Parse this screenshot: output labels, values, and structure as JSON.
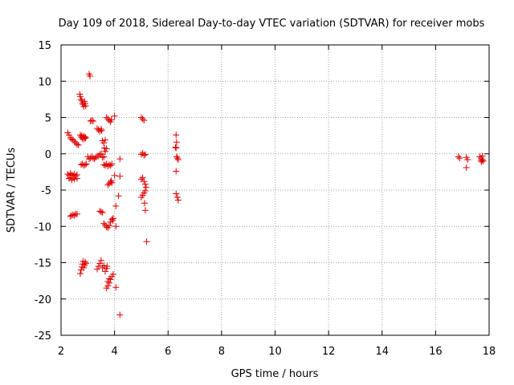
{
  "chart_data": {
    "type": "scatter",
    "title": "Day 109 of 2018, Sidereal Day-to-day VTEC variation (SDTVAR) for receiver mobs",
    "xlabel": "GPS time / hours",
    "ylabel": "SDTVAR / TECUs",
    "xlim": [
      2,
      18
    ],
    "ylim": [
      -25,
      15
    ],
    "xticks": [
      2,
      4,
      6,
      8,
      10,
      12,
      14,
      16,
      18
    ],
    "yticks": [
      -25,
      -20,
      -15,
      -10,
      -5,
      0,
      5,
      10,
      15
    ],
    "grid": true,
    "marker": "+",
    "color": "#e00000",
    "series": [
      {
        "name": "SDTVAR",
        "points": [
          [
            2.25,
            2.9
          ],
          [
            2.3,
            2.6
          ],
          [
            2.35,
            2.2
          ],
          [
            2.4,
            2.0
          ],
          [
            2.45,
            1.9
          ],
          [
            2.5,
            1.7
          ],
          [
            2.55,
            1.5
          ],
          [
            2.6,
            1.3
          ],
          [
            2.65,
            1.2
          ],
          [
            2.25,
            -2.8
          ],
          [
            2.3,
            -3.0
          ],
          [
            2.3,
            -3.4
          ],
          [
            2.35,
            -2.7
          ],
          [
            2.35,
            -3.3
          ],
          [
            2.4,
            -2.9
          ],
          [
            2.4,
            -3.6
          ],
          [
            2.45,
            -3.0
          ],
          [
            2.45,
            -3.3
          ],
          [
            2.5,
            -2.8
          ],
          [
            2.5,
            -3.5
          ],
          [
            2.55,
            -3.1
          ],
          [
            2.6,
            -2.9
          ],
          [
            2.6,
            -3.4
          ],
          [
            2.35,
            -8.6
          ],
          [
            2.4,
            -8.5
          ],
          [
            2.45,
            -8.4
          ],
          [
            2.5,
            -8.5
          ],
          [
            2.55,
            -8.3
          ],
          [
            2.6,
            -8.3
          ],
          [
            2.7,
            8.2
          ],
          [
            2.72,
            7.9
          ],
          [
            2.75,
            7.5
          ],
          [
            2.78,
            7.3
          ],
          [
            2.8,
            7.0
          ],
          [
            2.82,
            6.8
          ],
          [
            2.85,
            6.5
          ],
          [
            2.88,
            7.2
          ],
          [
            2.9,
            6.9
          ],
          [
            2.92,
            6.6
          ],
          [
            2.72,
            2.6
          ],
          [
            2.75,
            2.3
          ],
          [
            2.78,
            2.5
          ],
          [
            2.8,
            2.2
          ],
          [
            2.82,
            2.0
          ],
          [
            2.85,
            2.4
          ],
          [
            2.88,
            2.1
          ],
          [
            2.9,
            2.3
          ],
          [
            2.92,
            2.2
          ],
          [
            2.75,
            -1.5
          ],
          [
            2.8,
            -1.4
          ],
          [
            2.85,
            -1.6
          ],
          [
            2.9,
            -1.5
          ],
          [
            2.95,
            -1.4
          ],
          [
            2.72,
            -16.5
          ],
          [
            2.75,
            -16.0
          ],
          [
            2.78,
            -15.6
          ],
          [
            2.8,
            -15.2
          ],
          [
            2.82,
            -14.8
          ],
          [
            2.85,
            -15.7
          ],
          [
            2.88,
            -15.3
          ],
          [
            2.9,
            -14.9
          ],
          [
            2.93,
            -15.1
          ],
          [
            3.05,
            11.0
          ],
          [
            3.08,
            10.7
          ],
          [
            3.1,
            4.5
          ],
          [
            3.15,
            4.6
          ],
          [
            3.2,
            4.5
          ],
          [
            3.0,
            -0.4
          ],
          [
            3.05,
            -0.7
          ],
          [
            3.1,
            -0.6
          ],
          [
            3.15,
            -0.4
          ],
          [
            3.2,
            -0.6
          ],
          [
            3.25,
            -0.7
          ],
          [
            3.3,
            -0.5
          ],
          [
            3.35,
            -0.3
          ],
          [
            3.35,
            3.5
          ],
          [
            3.4,
            3.3
          ],
          [
            3.45,
            3.1
          ],
          [
            3.5,
            3.4
          ],
          [
            3.52,
            3.2
          ],
          [
            3.4,
            -0.3
          ],
          [
            3.45,
            -0.1
          ],
          [
            3.5,
            0.0
          ],
          [
            3.55,
            -0.5
          ],
          [
            3.6,
            -0.4
          ],
          [
            3.45,
            -7.9
          ],
          [
            3.5,
            -8.0
          ],
          [
            3.55,
            -8.1
          ],
          [
            3.35,
            -15.9
          ],
          [
            3.4,
            -15.5
          ],
          [
            3.45,
            -15.1
          ],
          [
            3.5,
            -14.7
          ],
          [
            3.55,
            -15.7
          ],
          [
            3.6,
            -15.4
          ],
          [
            3.65,
            -16.2
          ],
          [
            3.7,
            -15.8
          ],
          [
            3.72,
            -15.5
          ],
          [
            3.55,
            1.8
          ],
          [
            3.6,
            1.5
          ],
          [
            3.65,
            1.9
          ],
          [
            3.62,
            0.8
          ],
          [
            3.65,
            0.3
          ],
          [
            3.7,
            0.7
          ],
          [
            3.6,
            -1.5
          ],
          [
            3.65,
            -1.6
          ],
          [
            3.7,
            -1.4
          ],
          [
            3.75,
            -1.7
          ],
          [
            3.8,
            -1.5
          ],
          [
            3.85,
            -1.6
          ],
          [
            3.9,
            -1.4
          ],
          [
            3.7,
            5.0
          ],
          [
            3.75,
            4.8
          ],
          [
            3.8,
            4.6
          ],
          [
            3.85,
            4.4
          ],
          [
            3.88,
            4.7
          ],
          [
            3.75,
            -4.3
          ],
          [
            3.8,
            -4.1
          ],
          [
            3.85,
            -3.9
          ],
          [
            3.88,
            -3.7
          ],
          [
            3.9,
            -4.0
          ],
          [
            3.6,
            -9.6
          ],
          [
            3.65,
            -9.8
          ],
          [
            3.7,
            -10.1
          ],
          [
            3.75,
            -10.2
          ],
          [
            3.8,
            -9.9
          ],
          [
            3.85,
            -9.4
          ],
          [
            3.9,
            -9.0
          ],
          [
            3.93,
            -9.2
          ],
          [
            3.95,
            -8.9
          ],
          [
            3.7,
            -18.5
          ],
          [
            3.75,
            -18.2
          ],
          [
            3.8,
            -17.8
          ],
          [
            3.85,
            -17.3
          ],
          [
            3.9,
            -16.9
          ],
          [
            3.95,
            -16.6
          ],
          [
            3.75,
            -17.6
          ],
          [
            3.8,
            -17.2
          ],
          [
            4.0,
            5.2
          ],
          [
            4.0,
            -3.0
          ],
          [
            4.05,
            -7.2
          ],
          [
            4.05,
            -10.0
          ],
          [
            4.05,
            -18.4
          ],
          [
            4.2,
            -0.7
          ],
          [
            4.2,
            -3.1
          ],
          [
            4.15,
            -5.8
          ],
          [
            4.2,
            -22.2
          ],
          [
            5.0,
            5.0
          ],
          [
            5.05,
            4.8
          ],
          [
            5.1,
            4.6
          ],
          [
            5.0,
            -0.1
          ],
          [
            5.05,
            0.1
          ],
          [
            5.1,
            -0.2
          ],
          [
            5.15,
            -0.1
          ],
          [
            5.0,
            -3.5
          ],
          [
            5.05,
            -3.3
          ],
          [
            5.1,
            -3.8
          ],
          [
            5.15,
            -4.2
          ],
          [
            5.18,
            -4.6
          ],
          [
            5.0,
            -6.0
          ],
          [
            5.05,
            -5.7
          ],
          [
            5.1,
            -5.4
          ],
          [
            5.15,
            -5.1
          ],
          [
            5.12,
            -6.8
          ],
          [
            5.15,
            -7.8
          ],
          [
            5.2,
            -12.1
          ],
          [
            6.3,
            2.6
          ],
          [
            6.32,
            1.6
          ],
          [
            6.28,
            0.9
          ],
          [
            6.3,
            0.8
          ],
          [
            6.32,
            -0.4
          ],
          [
            6.35,
            -0.6
          ],
          [
            6.38,
            -0.8
          ],
          [
            6.3,
            -2.4
          ],
          [
            6.3,
            -5.5
          ],
          [
            6.35,
            -6.0
          ],
          [
            6.38,
            -6.4
          ],
          [
            16.85,
            -0.4
          ],
          [
            16.9,
            -0.6
          ],
          [
            17.15,
            -0.5
          ],
          [
            17.15,
            -1.9
          ],
          [
            17.2,
            -0.8
          ],
          [
            17.65,
            -0.4
          ],
          [
            17.7,
            -0.6
          ],
          [
            17.7,
            -0.9
          ],
          [
            17.72,
            -1.1
          ],
          [
            17.75,
            -0.8
          ],
          [
            17.78,
            -1.0
          ],
          [
            17.75,
            -0.3
          ]
        ]
      }
    ]
  }
}
